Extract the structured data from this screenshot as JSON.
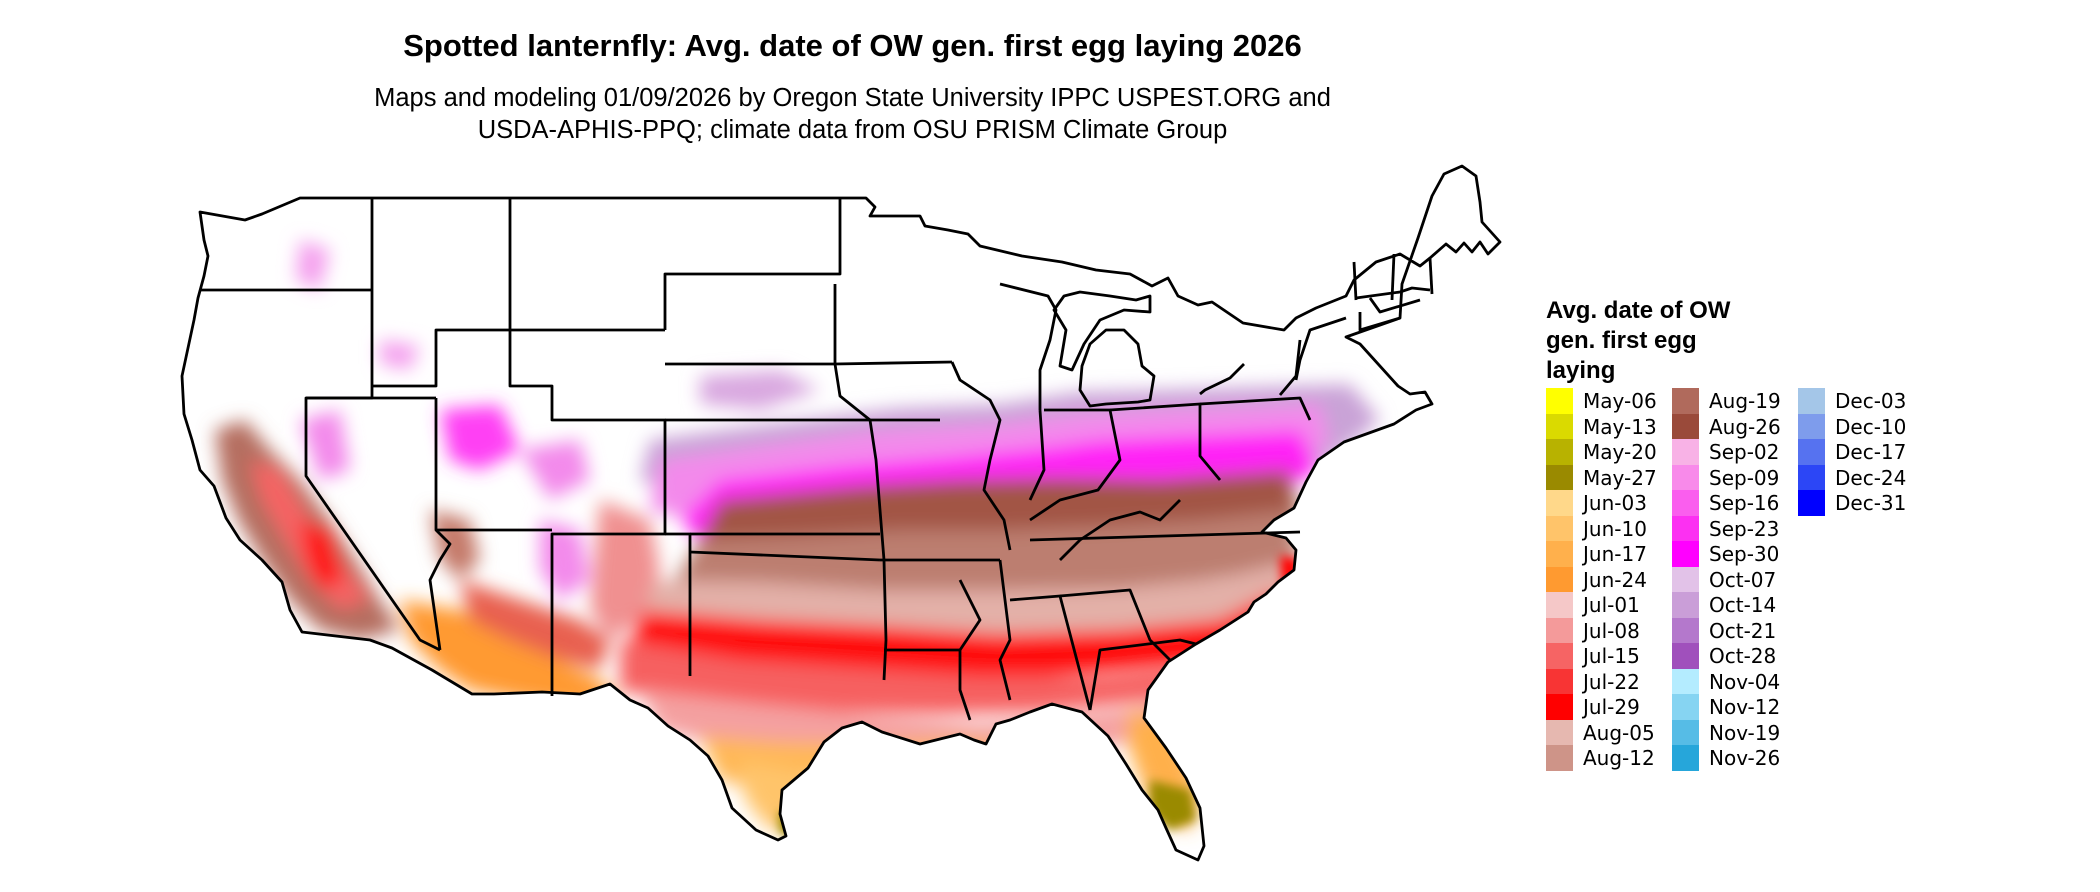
{
  "title": "Spotted lanternfly: Avg. date of OW gen. first egg laying 2026",
  "subtitle_line1": "Maps and modeling 01/09/2026 by Oregon State University IPPC USPEST.ORG and",
  "subtitle_line2": "USDA-APHIS-PPQ; climate data from OSU PRISM Climate Group",
  "legend": {
    "title_lines": [
      "Avg. date of OW",
      "gen. first egg",
      "laying"
    ],
    "columns": [
      [
        {
          "label": "May-06",
          "color": "#FFFF00"
        },
        {
          "label": "May-13",
          "color": "#DADA00"
        },
        {
          "label": "May-20",
          "color": "#B8B200"
        },
        {
          "label": "May-27",
          "color": "#9A8A00"
        },
        {
          "label": "Jun-03",
          "color": "#FFD88A"
        },
        {
          "label": "Jun-10",
          "color": "#FFC46A"
        },
        {
          "label": "Jun-17",
          "color": "#FFB04C"
        },
        {
          "label": "Jun-24",
          "color": "#FF9A30"
        },
        {
          "label": "Jul-01",
          "color": "#F5C8C8"
        },
        {
          "label": "Jul-08",
          "color": "#F49A9A"
        },
        {
          "label": "Jul-15",
          "color": "#F66464"
        },
        {
          "label": "Jul-22",
          "color": "#F83434"
        },
        {
          "label": "Jul-29",
          "color": "#FF0000"
        },
        {
          "label": "Aug-05",
          "color": "#E6B8B0"
        },
        {
          "label": "Aug-12",
          "color": "#CE9488"
        }
      ],
      [
        {
          "label": "Aug-19",
          "color": "#B06A5C"
        },
        {
          "label": "Aug-26",
          "color": "#9A4A3A"
        },
        {
          "label": "Sep-02",
          "color": "#F8B2E6"
        },
        {
          "label": "Sep-09",
          "color": "#F88AEA"
        },
        {
          "label": "Sep-16",
          "color": "#FA5EEE"
        },
        {
          "label": "Sep-23",
          "color": "#FC30F2"
        },
        {
          "label": "Sep-30",
          "color": "#FF00FF"
        },
        {
          "label": "Oct-07",
          "color": "#E2C2E8"
        },
        {
          "label": "Oct-14",
          "color": "#CA9ED8"
        },
        {
          "label": "Oct-21",
          "color": "#B478CC"
        },
        {
          "label": "Oct-28",
          "color": "#A050BC"
        },
        {
          "label": "Nov-04",
          "color": "#B4ECFF"
        },
        {
          "label": "Nov-12",
          "color": "#86D4F2"
        },
        {
          "label": "Nov-19",
          "color": "#56BCE6"
        },
        {
          "label": "Nov-26",
          "color": "#26A6DA"
        }
      ],
      [
        {
          "label": "Dec-03",
          "color": "#A4C6E8"
        },
        {
          "label": "Dec-10",
          "color": "#7E9CEC"
        },
        {
          "label": "Dec-17",
          "color": "#5672F0"
        },
        {
          "label": "Dec-24",
          "color": "#2C46F6"
        },
        {
          "label": "Dec-31",
          "color": "#0000FF"
        }
      ]
    ]
  }
}
